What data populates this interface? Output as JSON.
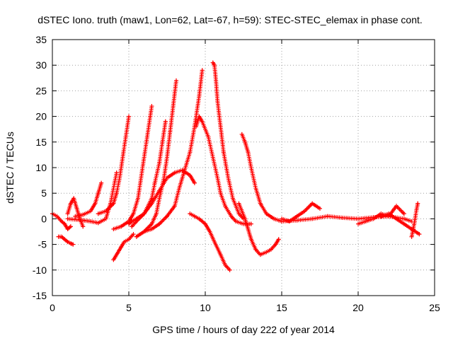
{
  "chart_data": {
    "type": "scatter",
    "title": "dSTEC Iono. truth (maw1, Lon=62, Lat=-67, h=59): STEC-STEC_elemax in phase cont.",
    "xlabel": "GPS time / hours of day 222 of year 2014",
    "ylabel": "dSTEC  / TECUs",
    "xlim": [
      0,
      25
    ],
    "ylim": [
      -15,
      35
    ],
    "xticks": [
      0,
      5,
      10,
      15,
      20,
      25
    ],
    "yticks": [
      -15,
      -10,
      -5,
      0,
      5,
      10,
      15,
      20,
      25,
      30,
      35
    ],
    "xtick_labels": [
      "0",
      "5",
      "10",
      "15",
      "20",
      "25"
    ],
    "ytick_labels": [
      "-15",
      "-10",
      "-5",
      "0",
      "5",
      "10",
      "15",
      "20",
      "25",
      "30",
      "35"
    ],
    "grid": true,
    "marker": "+",
    "color": "#ff0000",
    "series": [
      {
        "x": [
          0.0,
          0.3,
          0.6,
          0.8,
          1.0,
          1.2
        ],
        "y": [
          1.0,
          0.5,
          -0.5,
          -1.0,
          -2.0,
          -1.5
        ]
      },
      {
        "x": [
          0.4,
          0.6,
          0.8,
          1.0,
          1.2,
          1.35
        ],
        "y": [
          -3.5,
          -3.5,
          -4.0,
          -4.5,
          -4.8,
          -5.0
        ]
      },
      {
        "x": [
          1.0,
          1.2,
          1.4,
          1.6,
          1.8,
          2.0
        ],
        "y": [
          1.0,
          3.0,
          4.0,
          2.0,
          0.0,
          -1.5
        ]
      },
      {
        "x": [
          1.5,
          2.0,
          2.5,
          2.8,
          3.0,
          3.2
        ],
        "y": [
          0.5,
          0.8,
          1.5,
          3.0,
          5.0,
          7.0
        ]
      },
      {
        "x": [
          3.0,
          3.5,
          4.0,
          4.2,
          4.4,
          4.6,
          4.8,
          5.0
        ],
        "y": [
          1.0,
          1.5,
          3.0,
          5.0,
          8.0,
          12.0,
          16.0,
          20.0
        ]
      },
      {
        "x": [
          1.0,
          2.0,
          2.5,
          3.0,
          3.5,
          3.8,
          4.0,
          4.2
        ],
        "y": [
          0.0,
          -0.3,
          -0.5,
          -0.8,
          0.0,
          3.0,
          6.0,
          9.0
        ]
      },
      {
        "x": [
          4.0,
          4.3,
          4.5,
          4.7,
          5.0,
          5.3
        ],
        "y": [
          -8.0,
          -6.5,
          -5.5,
          -4.5,
          -4.0,
          -3.0
        ]
      },
      {
        "x": [
          4.0,
          4.5,
          5.0,
          5.3,
          5.6,
          5.8,
          6.0,
          6.2,
          6.4,
          6.5
        ],
        "y": [
          -2.0,
          -1.5,
          -0.5,
          1.0,
          4.0,
          8.0,
          12.0,
          16.0,
          20.0,
          22.0
        ]
      },
      {
        "x": [
          5.0,
          5.2,
          5.5,
          6.0,
          6.5,
          6.7,
          7.0,
          7.2,
          7.4
        ],
        "y": [
          -1.0,
          -0.5,
          0.0,
          1.0,
          4.0,
          7.0,
          11.0,
          15.0,
          19.0
        ]
      },
      {
        "x": [
          5.5,
          6.0,
          6.5,
          6.8,
          7.0,
          7.3,
          7.5,
          7.7,
          7.9,
          8.1
        ],
        "y": [
          -3.5,
          -2.5,
          -1.0,
          1.0,
          4.0,
          8.0,
          12.0,
          17.0,
          22.0,
          27.0
        ]
      },
      {
        "x": [
          6.0,
          6.5,
          7.0,
          7.5,
          8.0,
          8.3,
          8.6,
          9.0,
          9.3,
          9.6,
          9.8
        ],
        "y": [
          -2.5,
          -2.0,
          -1.0,
          0.5,
          2.5,
          6.0,
          9.0,
          13.0,
          18.0,
          24.0,
          29.0
        ]
      },
      {
        "x": [
          5.2,
          5.5,
          6.0,
          6.5,
          7.0,
          7.5,
          8.0,
          8.5,
          9.0,
          9.3
        ],
        "y": [
          -1.5,
          -0.5,
          1.0,
          3.0,
          5.5,
          8.0,
          9.0,
          9.5,
          8.5,
          7.0
        ]
      },
      {
        "x": [
          9.0,
          9.3,
          9.6,
          10.0,
          10.3,
          10.6,
          11.0,
          11.3,
          11.6
        ],
        "y": [
          1.0,
          0.5,
          0.0,
          -1.0,
          -2.5,
          -4.5,
          -7.0,
          -9.0,
          -10.0
        ]
      },
      {
        "x": [
          9.4,
          9.6,
          9.8,
          10.2,
          10.5,
          10.8,
          11.0,
          11.3,
          11.7,
          12.0,
          12.5,
          13.0
        ],
        "y": [
          18.0,
          20.0,
          19.0,
          16.0,
          12.0,
          8.0,
          5.0,
          2.5,
          0.5,
          -0.5,
          -1.0,
          -1.0
        ]
      },
      {
        "x": [
          10.5,
          10.6,
          10.7,
          10.8,
          11.0,
          11.2,
          11.5,
          11.8,
          12.2,
          12.5
        ],
        "y": [
          30.5,
          30.0,
          27.0,
          23.0,
          18.0,
          13.0,
          8.0,
          4.0,
          1.0,
          0.0
        ]
      },
      {
        "x": [
          12.4,
          12.6,
          12.8,
          13.0,
          13.3,
          13.6,
          14.0,
          14.5,
          15.0
        ],
        "y": [
          16.5,
          15.0,
          13.0,
          10.0,
          6.0,
          3.0,
          1.0,
          0.0,
          -0.5
        ]
      },
      {
        "x": [
          12.2,
          12.4,
          12.6,
          12.8,
          13.0,
          13.3,
          13.6,
          14.0,
          14.3,
          14.6,
          14.8
        ],
        "y": [
          3.0,
          1.5,
          0.0,
          -2.0,
          -4.0,
          -6.0,
          -7.0,
          -6.5,
          -6.0,
          -5.0,
          -4.0
        ]
      },
      {
        "x": [
          15.0,
          15.5,
          16.0,
          16.5,
          17.0,
          17.5
        ],
        "y": [
          0.0,
          -0.5,
          0.5,
          1.5,
          3.0,
          2.0
        ]
      },
      {
        "x": [
          15.0,
          16.0,
          17.0,
          18.0,
          19.0,
          20.0,
          21.0,
          22.0,
          23.0,
          23.5
        ],
        "y": [
          -0.5,
          -0.3,
          0.0,
          0.5,
          0.2,
          0.0,
          0.3,
          0.5,
          0.0,
          -0.5
        ]
      },
      {
        "x": [
          20.0,
          20.5,
          21.0,
          21.5,
          22.0,
          22.5,
          23.0
        ],
        "y": [
          -1.0,
          -0.5,
          0.0,
          1.0,
          0.5,
          2.5,
          1.0
        ]
      },
      {
        "x": [
          21.5,
          22.0,
          22.5,
          23.0,
          23.5,
          24.0
        ],
        "y": [
          0.5,
          1.0,
          0.0,
          -1.0,
          -2.0,
          -3.0
        ]
      },
      {
        "x": [
          23.5,
          23.6,
          23.7,
          23.8,
          23.9
        ],
        "y": [
          -3.5,
          -2.0,
          -0.5,
          1.5,
          3.0
        ]
      }
    ]
  }
}
